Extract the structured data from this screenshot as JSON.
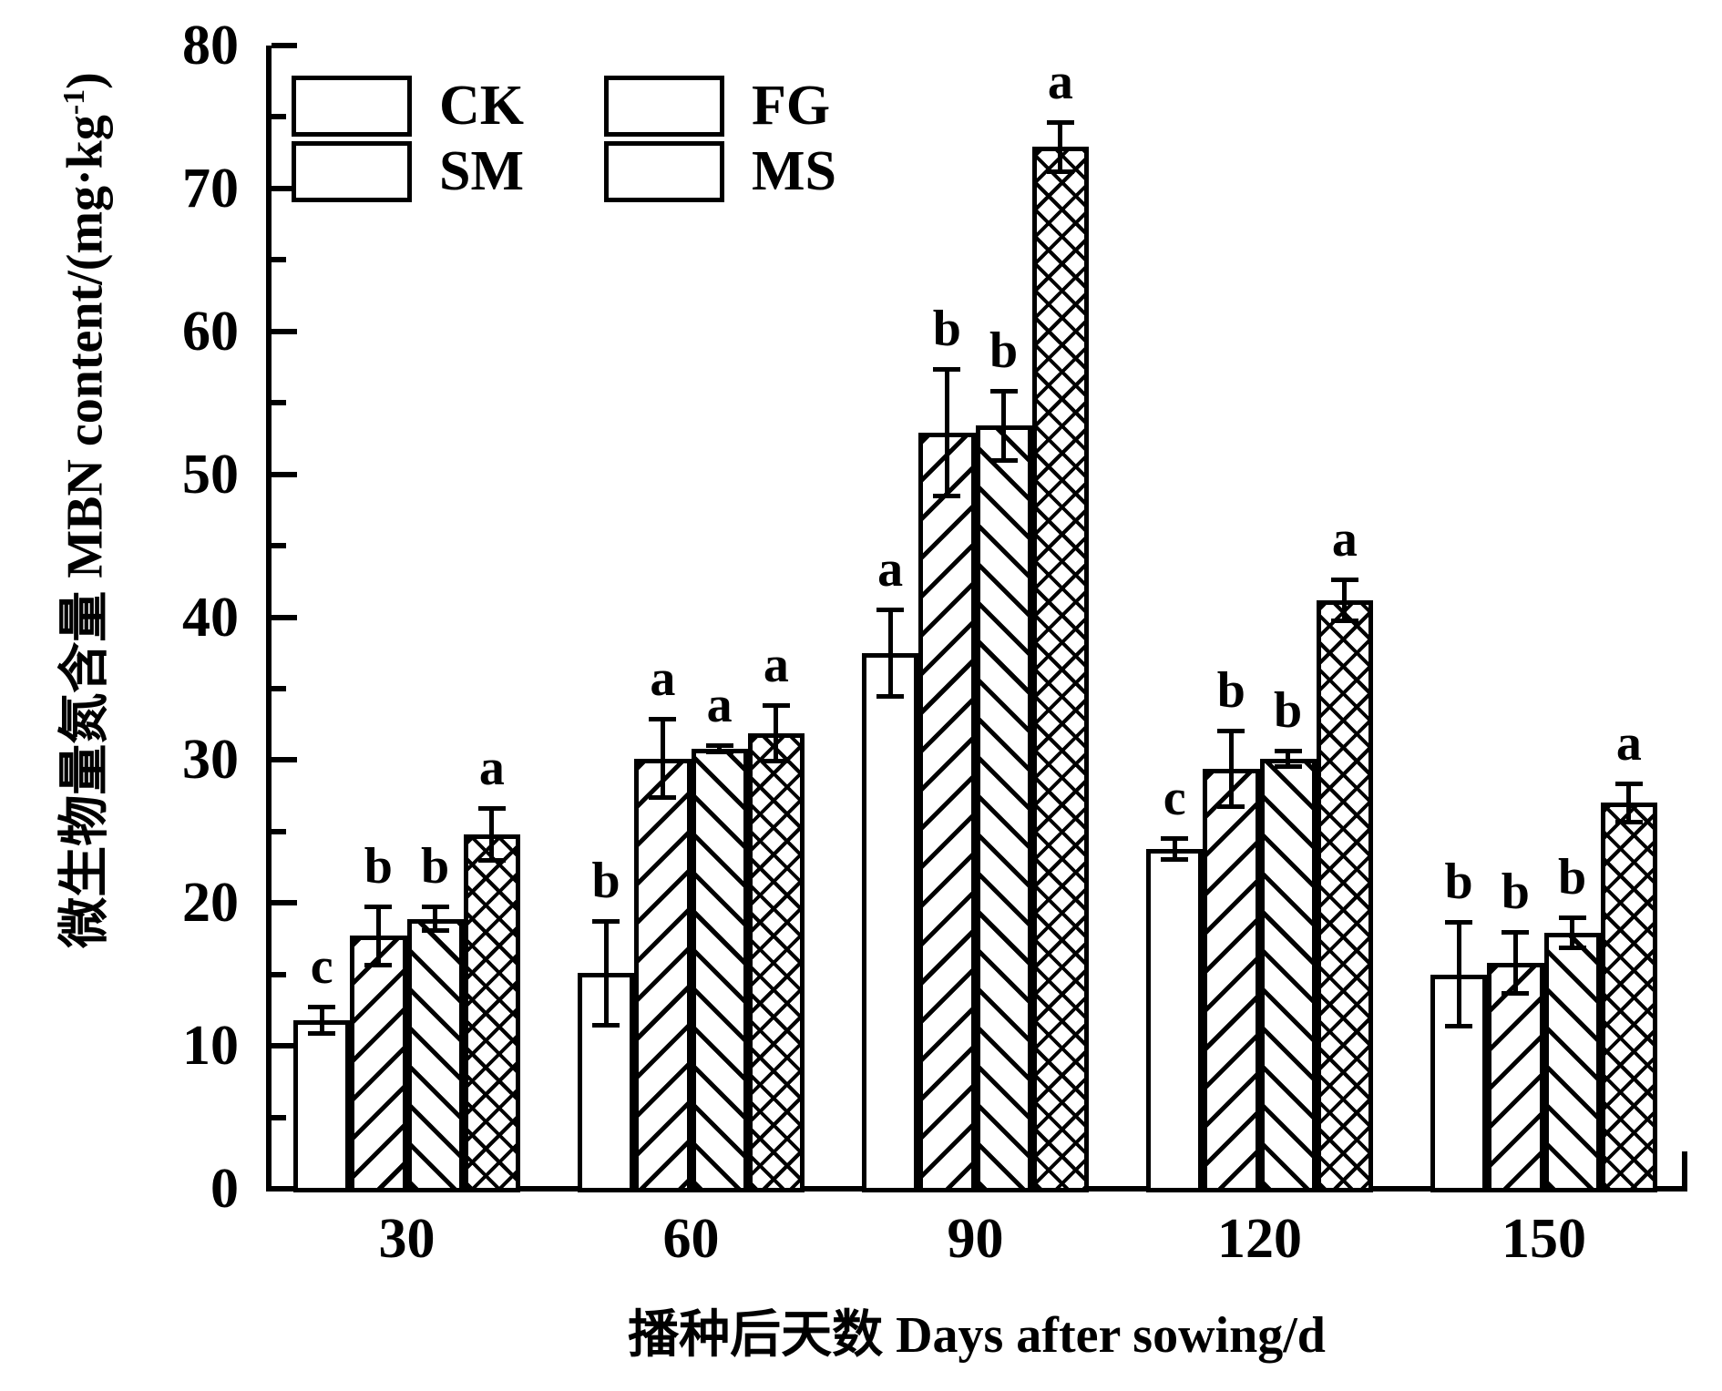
{
  "figure": {
    "background": "#ffffff",
    "foreground": "#000000",
    "y_axis": {
      "label_main": "微生物量氮含量 MBN content/(mg·kg",
      "label_sup": "-1",
      "label_close": ")",
      "full_label": "微生物量氮含量 MBN content/(mg·kg⁻¹)"
    },
    "x_axis": {
      "label": "播种后天数 Days after sowing/d"
    }
  },
  "chart_data": {
    "type": "bar",
    "title": "",
    "xlabel": "播种后天数 Days after sowing/d",
    "ylabel": "微生物量氮含量 MBN content/(mg·kg⁻¹)",
    "ylim": [
      0,
      80
    ],
    "y_major_ticks": [
      0,
      10,
      20,
      30,
      40,
      50,
      60,
      70,
      80
    ],
    "y_minor_step": 5,
    "grid": false,
    "legend_position": "top-left",
    "categories": [
      "30",
      "60",
      "90",
      "120",
      "150"
    ],
    "series": [
      {
        "name": "CK",
        "pattern": "solid-white",
        "values": [
          11.8,
          15.1,
          37.5,
          23.8,
          15.0
        ],
        "errors": [
          1.1,
          3.8,
          3.2,
          0.9,
          3.8
        ],
        "letters": [
          "c",
          "b",
          "a",
          "c",
          "b"
        ]
      },
      {
        "name": "FG",
        "pattern": "diagonal-up",
        "values": [
          17.7,
          30.1,
          52.9,
          29.4,
          15.8
        ],
        "errors": [
          2.2,
          2.9,
          4.6,
          2.8,
          2.3
        ],
        "letters": [
          "b",
          "a",
          "b",
          "b",
          "b"
        ]
      },
      {
        "name": "SM",
        "pattern": "diagonal-down",
        "values": [
          18.9,
          30.8,
          53.4,
          30.1,
          17.9
        ],
        "errors": [
          1.0,
          0.4,
          2.6,
          0.7,
          1.2
        ],
        "letters": [
          "b",
          "a",
          "b",
          "b",
          "b"
        ]
      },
      {
        "name": "MS",
        "pattern": "crosshatch",
        "values": [
          24.8,
          31.9,
          72.9,
          41.2,
          27.0
        ],
        "errors": [
          2.0,
          2.1,
          1.9,
          1.6,
          1.5
        ],
        "letters": [
          "a",
          "a",
          "a",
          "a",
          "a"
        ]
      }
    ]
  }
}
